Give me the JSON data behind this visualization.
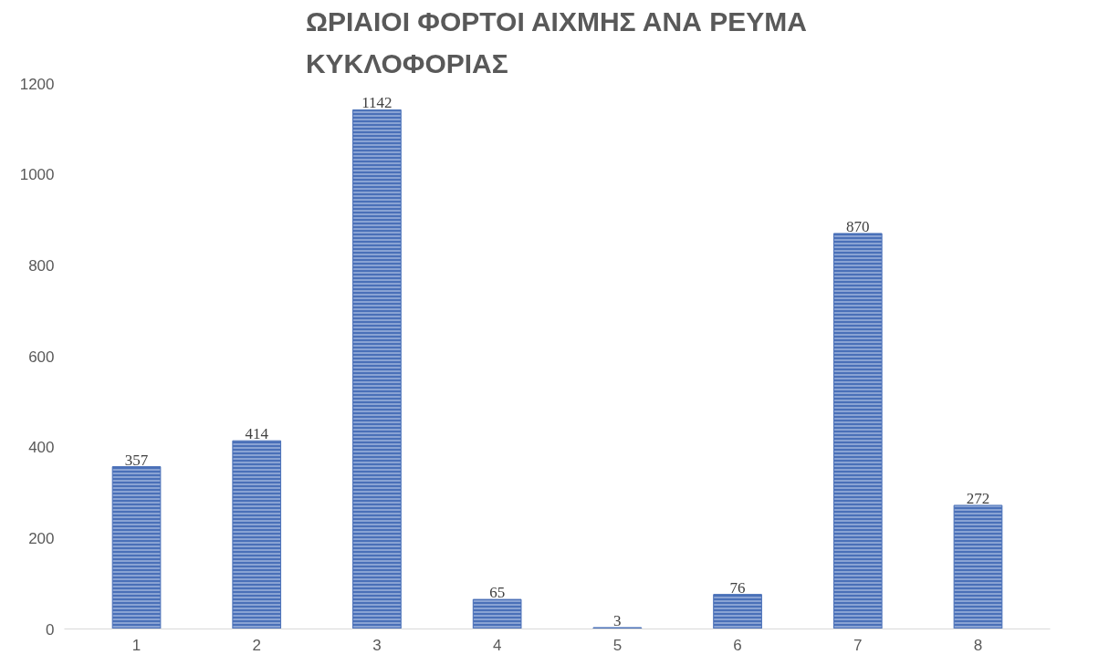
{
  "chart_data": {
    "type": "bar",
    "title": "ΩΡΙΑΙΟΙ ΦΟΡΤΟΙ ΑΙΧΜΗΣ ΑΝΑ ΡΕΥΜΑ ΚΥΚΛΟΦΟΡΙΑΣ",
    "categories": [
      "1",
      "2",
      "3",
      "4",
      "5",
      "6",
      "7",
      "8"
    ],
    "values": [
      357,
      414,
      1142,
      65,
      3,
      76,
      870,
      272
    ],
    "color": "#4a70b8",
    "ylim": [
      0,
      1200
    ],
    "yticks": [
      0,
      200,
      400,
      600,
      800,
      1000,
      1200
    ],
    "grid": false,
    "data_labels": true
  }
}
